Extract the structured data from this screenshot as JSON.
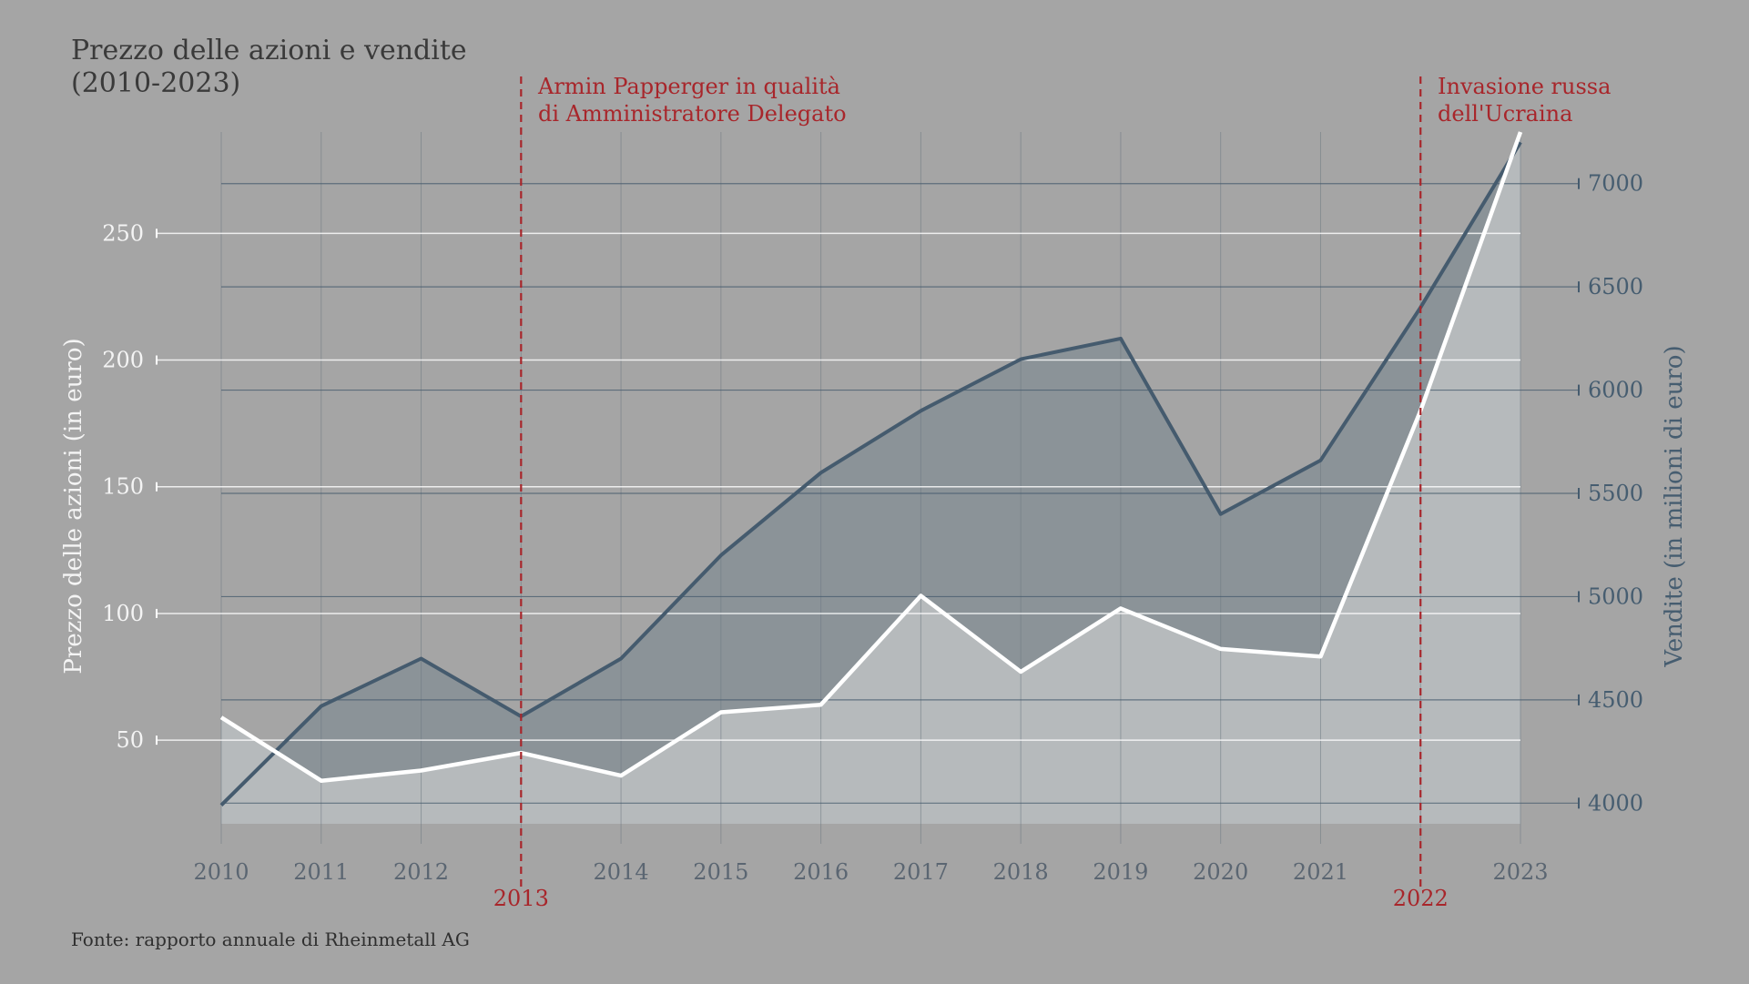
{
  "colors": {
    "background": "#a5a5a5",
    "price_line": "#ffffff",
    "price_area": "#b6babc",
    "sales_line": "#455b6e",
    "sales_area": "#8b9398",
    "annotation": "#a8262b",
    "left_axis_text": "#f4f4f4",
    "right_axis_text": "#465d70",
    "x_axis_text": "#5b6672"
  },
  "chart_data": {
    "type": "line",
    "title": "Prezzo delle azioni e vendite",
    "title_line2": "(2010-2023)",
    "source": "Fonte: rapporto annuale di Rheinmetall AG",
    "x": [
      2010,
      2011,
      2012,
      2013,
      2014,
      2015,
      2016,
      2017,
      2018,
      2019,
      2020,
      2021,
      2022,
      2023
    ],
    "x_tick_labels": [
      "2010",
      "2011",
      "2012",
      "2013",
      "2014",
      "2015",
      "2016",
      "2017",
      "2018",
      "2019",
      "2020",
      "2021",
      "2022",
      "2023"
    ],
    "x_highlight_ticks": [
      "2013",
      "2022"
    ],
    "y_left_label": "Prezzo delle azioni (in euro)",
    "y_left_ticks": [
      50,
      100,
      150,
      200,
      250
    ],
    "y_left_range": [
      17,
      290
    ],
    "y_right_label": "Vendite (in milioni di euro)",
    "y_right_ticks": [
      4000,
      4500,
      5000,
      5500,
      6000,
      6500,
      7000
    ],
    "y_right_range": [
      3900,
      7250
    ],
    "grid": true,
    "series": [
      {
        "axis": "left",
        "values": [
          59,
          34,
          38,
          45,
          36,
          61,
          64,
          107,
          77,
          102,
          86,
          83,
          180,
          290
        ]
      },
      {
        "axis": "right",
        "values": [
          3990,
          4470,
          4700,
          4420,
          4700,
          5200,
          5600,
          5900,
          6150,
          6250,
          5400,
          5660,
          6400,
          7200
        ]
      }
    ],
    "annotations": [
      {
        "x": 2013,
        "lines": [
          "Armin Papperger in qualità",
          "di Amministratore Delegato"
        ]
      },
      {
        "x": 2022,
        "lines": [
          "Invasione russa",
          "dell'Ucraina"
        ]
      }
    ]
  }
}
